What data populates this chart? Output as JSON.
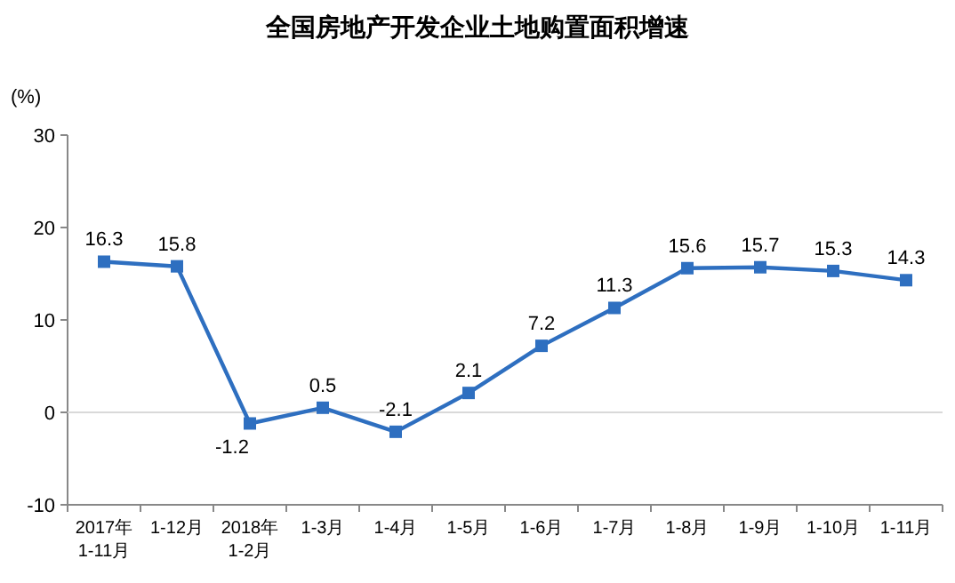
{
  "chart_data": {
    "type": "line",
    "title": "全国房地产开发企业土地购置面积增速",
    "ylabel": "(%)",
    "categories": [
      "2017年\n1-11月",
      "1-12月",
      "2018年\n1-2月",
      "1-3月",
      "1-4月",
      "1-5月",
      "1-6月",
      "1-7月",
      "1-8月",
      "1-9月",
      "1-10月",
      "1-11月"
    ],
    "series": [
      {
        "color": "#2e6fc0",
        "values": [
          16.3,
          15.8,
          -1.2,
          0.5,
          -2.1,
          2.1,
          7.2,
          11.3,
          15.6,
          15.7,
          15.3,
          14.3
        ]
      }
    ],
    "ylim": [
      -10,
      30
    ],
    "yticks": [
      -10,
      0,
      10,
      20,
      30
    ],
    "marker": "square",
    "line_style": "solid",
    "data_labels": true,
    "ref_lines": [
      {
        "axis": "y",
        "value": 0,
        "color": "#d9d9d9"
      }
    ]
  }
}
